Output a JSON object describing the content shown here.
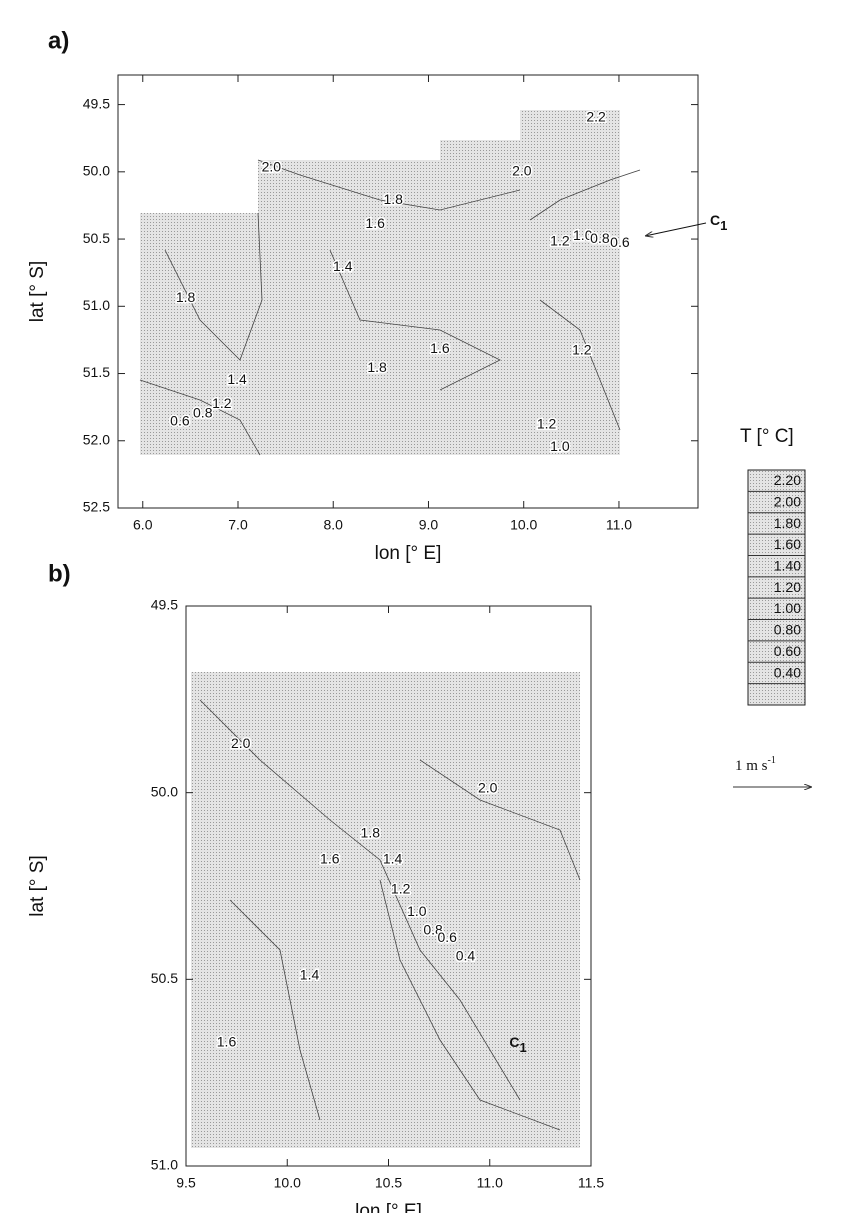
{
  "charts": [
    {
      "type": "contour",
      "panel_label": "a)",
      "xlabel": "lon [° E]",
      "ylabel": "lat [° S]",
      "xlim": [
        5.74,
        11.83
      ],
      "ylim": [
        52.5,
        49.28
      ],
      "xticks": [
        {
          "value": 6,
          "label": "6.0"
        },
        {
          "value": 7,
          "label": "7.0"
        },
        {
          "value": 8,
          "label": "8.0"
        },
        {
          "value": 9,
          "label": "9.0"
        },
        {
          "value": 10,
          "label": "10.0"
        },
        {
          "value": 11,
          "label": "11.0"
        }
      ],
      "yticks": [
        49.5,
        {
          "value": 50,
          "label": "50.0"
        },
        50.5,
        {
          "value": 51,
          "label": "51.0"
        },
        51.5,
        {
          "value": 52,
          "label": "52.0"
        },
        52.5
      ],
      "contour_labels": [
        {
          "label": "2.0",
          "x": 7.35,
          "y": 49.97
        },
        {
          "label": "1.8",
          "x": 8.63,
          "y": 50.21
        },
        {
          "label": "1.6",
          "x": 8.44,
          "y": 50.39
        },
        {
          "label": "1.4",
          "x": 8.1,
          "y": 50.71
        },
        {
          "label": "1.8",
          "x": 6.45,
          "y": 50.94
        },
        {
          "label": "1.6",
          "x": 9.12,
          "y": 51.32
        },
        {
          "label": "1.8",
          "x": 8.46,
          "y": 51.46
        },
        {
          "label": "1.4",
          "x": 6.99,
          "y": 51.55
        },
        {
          "label": "1.2",
          "x": 6.83,
          "y": 51.73
        },
        {
          "label": "0.8",
          "x": 6.63,
          "y": 51.8
        },
        {
          "label": "0.6",
          "x": 6.39,
          "y": 51.86
        },
        {
          "label": "1.2",
          "x": 10.24,
          "y": 51.88
        },
        {
          "label": "1.0",
          "x": 10.38,
          "y": 52.05
        },
        {
          "label": "1.2",
          "x": 10.61,
          "y": 51.33
        },
        {
          "label": "2.2",
          "x": 10.76,
          "y": 49.6
        },
        {
          "label": "2.0",
          "x": 9.98,
          "y": 50.0
        },
        {
          "label": "1.2",
          "x": 10.38,
          "y": 50.52
        },
        {
          "label": "1.0",
          "x": 10.62,
          "y": 50.48
        },
        {
          "label": "0.8",
          "x": 10.8,
          "y": 50.5
        },
        {
          "label": "0.6",
          "x": 11.01,
          "y": 50.53
        }
      ],
      "annotations": [
        {
          "text": "C",
          "subscript": "1"
        }
      ]
    },
    {
      "type": "contour",
      "panel_label": "b)",
      "xlabel": "lon [° E]",
      "ylabel": "lat [° S]",
      "xlim": [
        9.5,
        11.5
      ],
      "ylim": [
        51.0,
        49.5
      ],
      "xticks": [
        9.5,
        {
          "value": 10,
          "label": "10.0"
        },
        10.5,
        {
          "value": 11,
          "label": "11.0"
        },
        11.5
      ],
      "yticks": [
        49.5,
        {
          "value": 50,
          "label": "50.0"
        },
        50.5,
        {
          "value": 51,
          "label": "51.0"
        }
      ],
      "contour_labels": [
        {
          "label": "2.0",
          "x": 9.77,
          "y": 49.87
        },
        {
          "label": "2.0",
          "x": 10.99,
          "y": 49.99
        },
        {
          "label": "1.8",
          "x": 10.41,
          "y": 50.11
        },
        {
          "label": "1.6",
          "x": 10.21,
          "y": 50.18
        },
        {
          "label": "1.4",
          "x": 10.52,
          "y": 50.18
        },
        {
          "label": "1.2",
          "x": 10.56,
          "y": 50.26
        },
        {
          "label": "1.0",
          "x": 10.64,
          "y": 50.32
        },
        {
          "label": "0.8",
          "x": 10.72,
          "y": 50.37
        },
        {
          "label": "0.6",
          "x": 10.79,
          "y": 50.39
        },
        {
          "label": "0.4",
          "x": 10.88,
          "y": 50.44
        },
        {
          "label": "1.4",
          "x": 10.11,
          "y": 50.49
        },
        {
          "label": "1.6",
          "x": 9.7,
          "y": 50.67
        }
      ],
      "annotations": [
        {
          "text": "C",
          "subscript": "1",
          "x": 11.14,
          "y": 50.67
        }
      ]
    }
  ],
  "colorbar": {
    "title": "T [° C]",
    "clim": [
      0.2,
      2.4
    ],
    "ticks": [
      {
        "value": 2.2,
        "label": "2.20"
      },
      {
        "value": 2.0,
        "label": "2.00"
      },
      {
        "value": 1.8,
        "label": "1.80"
      },
      {
        "value": 1.6,
        "label": "1.60"
      },
      {
        "value": 1.4,
        "label": "1.40"
      },
      {
        "value": 1.2,
        "label": "1.20"
      },
      {
        "value": 1.0,
        "label": "1.00"
      },
      {
        "value": 0.8,
        "label": "0.80"
      },
      {
        "value": 0.6,
        "label": "0.60"
      },
      {
        "value": 0.4,
        "label": "0.40"
      }
    ]
  },
  "scale_bar": {
    "label": "1 m s",
    "superscript": "-1"
  }
}
